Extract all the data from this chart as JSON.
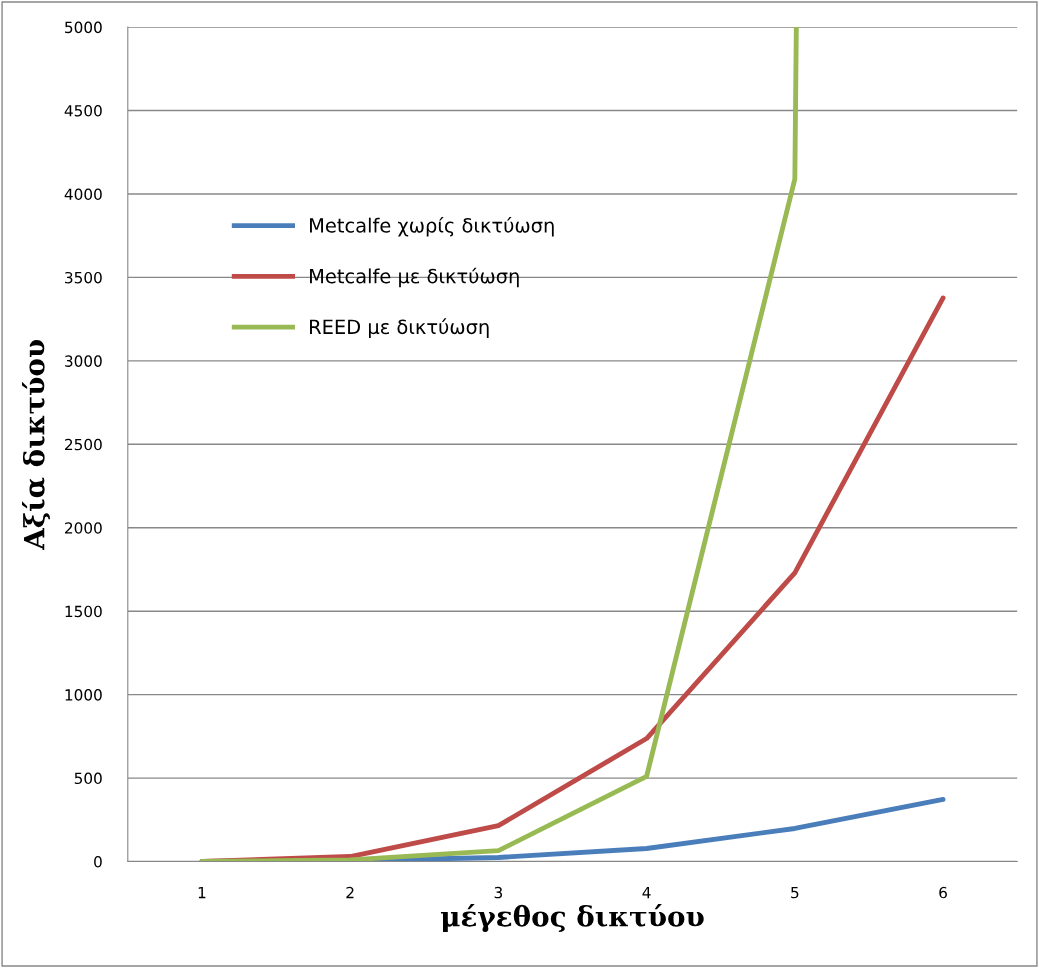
{
  "chart_data": {
    "type": "line",
    "xlabel": "μέγεθος δικτύου",
    "ylabel": "Αξία δικτύου",
    "x": [
      1,
      2,
      3,
      4,
      5,
      6
    ],
    "series": [
      {
        "name": "Metcalfe χωρίς δικτύωση",
        "color": "#4a7ebb",
        "values": [
          0,
          6,
          24,
          78,
          198,
          372
        ]
      },
      {
        "name": "Metcalfe με δικτύωση",
        "color": "#be4b48",
        "values": [
          0,
          30,
          215,
          737,
          1730,
          3377
        ]
      },
      {
        "name": "REED με δικτύωση",
        "color": "#98b954",
        "x": [
          1,
          2,
          3,
          4,
          5,
          5.01
        ],
        "values": [
          0,
          10,
          65,
          510,
          4090,
          5000
        ]
      }
    ],
    "xlim": [
      0.5,
      6.5
    ],
    "xticks": [
      1,
      2,
      3,
      4,
      5,
      6
    ],
    "ylim": [
      0,
      5000
    ],
    "yticks": [
      0,
      500,
      1000,
      1500,
      2000,
      2500,
      3000,
      3500,
      4000,
      4500,
      5000
    ],
    "grid": "y",
    "legend": "left",
    "marker": "none",
    "line_style": "solid"
  }
}
